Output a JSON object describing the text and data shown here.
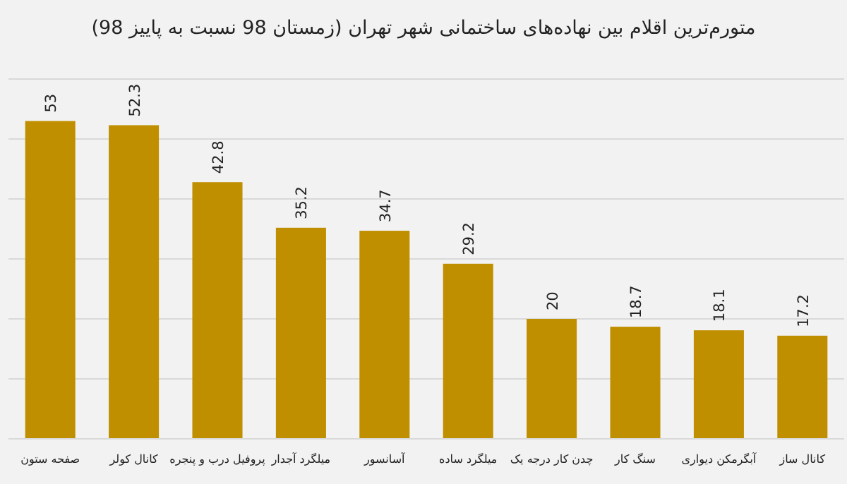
{
  "chart_data": {
    "type": "bar",
    "title": "متورم‌ترین اقلام بین نهاده‌های ساختمانی شهر تهران (زمستان 98 نسبت به پاییز 98)",
    "categories": [
      "صفحه ستون",
      "کانال کولر",
      "پروفیل درب و پنجره",
      "میلگرد آجدار",
      "آسانسور",
      "میلگرد ساده",
      "چدن کار درجه یک",
      "سنگ کار",
      "آبگرمکن دیواری",
      "کانال ساز"
    ],
    "values": [
      53,
      52.3,
      42.8,
      35.2,
      34.7,
      29.2,
      20,
      18.7,
      18.1,
      17.2
    ],
    "color": "#bf8f00",
    "ylim": [
      0,
      60
    ],
    "yticks": [
      {
        "value": 0,
        "label": null
      },
      {
        "value": 10,
        "label": null
      },
      {
        "value": 20,
        "label": null
      },
      {
        "value": 30,
        "label": null
      },
      {
        "value": 40,
        "label": null
      },
      {
        "value": 50,
        "label": null
      },
      {
        "value": 60,
        "label": null
      }
    ],
    "grid": "y",
    "data_labels": true,
    "tick_labels": "x"
  }
}
